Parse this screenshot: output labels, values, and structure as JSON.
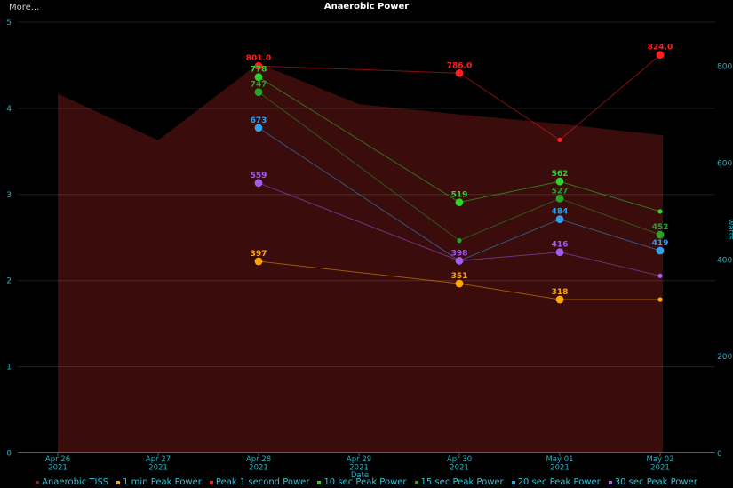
{
  "header": {
    "more_label": "More...",
    "title": "Anaerobic Power"
  },
  "chart_data": {
    "type": "line+area",
    "title": "Anaerobic Power",
    "xlabel": "Date",
    "dates": [
      "Apr 26",
      "Apr 27",
      "Apr 28",
      "Apr 29",
      "Apr 30",
      "May 01",
      "May 02"
    ],
    "year": "2021",
    "left_axis": {
      "ticks": [
        0,
        1,
        2,
        3,
        4,
        5
      ],
      "range": [
        0,
        5
      ]
    },
    "right_axis": {
      "label": "watts",
      "ticks": [
        0,
        200,
        400,
        600,
        800
      ],
      "range": [
        0,
        937
      ]
    },
    "area_series": {
      "name": "Anaerobic TISS",
      "axis": "left",
      "fill_color": "#3a0c0c",
      "legend_marker_color": "#7d2323",
      "values": [
        4.17,
        3.63,
        4.52,
        4.05,
        3.93,
        3.82,
        3.69
      ]
    },
    "series": [
      {
        "name": "1 min Peak Power",
        "color": "#ffa500",
        "points": [
          {
            "date": "Apr 28",
            "value": 397,
            "label": "397"
          },
          {
            "date": "Apr 30",
            "value": 351,
            "label": "351"
          },
          {
            "date": "May 01",
            "value": 318,
            "label": "318"
          },
          {
            "date": "May 02",
            "value": 318,
            "label": null
          }
        ]
      },
      {
        "name": "Peak 1 second Power",
        "color": "#ff1e1e",
        "points": [
          {
            "date": "Apr 28",
            "value": 801,
            "label": "801.0"
          },
          {
            "date": "Apr 30",
            "value": 786,
            "label": "786.0"
          },
          {
            "date": "May 01",
            "value": 648,
            "label": null
          },
          {
            "date": "May 02",
            "value": 824,
            "label": "824.0"
          }
        ]
      },
      {
        "name": "10 sec Peak Power",
        "color": "#2ed32e",
        "points": [
          {
            "date": "Apr 28",
            "value": 778,
            "label": "778"
          },
          {
            "date": "Apr 30",
            "value": 519,
            "label": "519"
          },
          {
            "date": "May 01",
            "value": 562,
            "label": "562"
          },
          {
            "date": "May 02",
            "value": 500,
            "label": null
          }
        ]
      },
      {
        "name": "15 sec Peak Power",
        "color": "#28a428",
        "points": [
          {
            "date": "Apr 28",
            "value": 747,
            "label": "747"
          },
          {
            "date": "Apr 30",
            "value": 440,
            "label": null
          },
          {
            "date": "May 01",
            "value": 527,
            "label": "527"
          },
          {
            "date": "May 02",
            "value": 452,
            "label": "452"
          }
        ]
      },
      {
        "name": "20 sec Peak Power",
        "color": "#31a0ea",
        "points": [
          {
            "date": "Apr 28",
            "value": 673,
            "label": "673"
          },
          {
            "date": "Apr 30",
            "value": 398,
            "label": null
          },
          {
            "date": "May 01",
            "value": 484,
            "label": "484"
          },
          {
            "date": "May 02",
            "value": 419,
            "label": "419"
          }
        ]
      },
      {
        "name": "30 sec Peak Power",
        "color": "#a55cf2",
        "points": [
          {
            "date": "Apr 28",
            "value": 559,
            "label": "559"
          },
          {
            "date": "Apr 30",
            "value": 398,
            "label": "398"
          },
          {
            "date": "May 01",
            "value": 416,
            "label": "416"
          },
          {
            "date": "May 02",
            "value": 367,
            "label": null
          }
        ]
      }
    ],
    "colors": {
      "background": "#000000",
      "axis_text": "#25aebf",
      "legend_text": "#2fc6d8",
      "grid": "rgba(255,255,255,0.13)",
      "axis_line": "#5a5a5a",
      "title": "#ffffff"
    }
  }
}
